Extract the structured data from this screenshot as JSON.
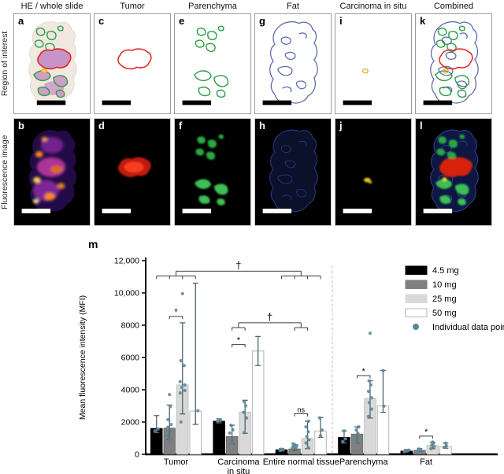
{
  "figure": {
    "row_labels": [
      "Region of interest",
      "Fluorescence image"
    ],
    "column_titles": [
      "HE / whole slide",
      "Tumor",
      "Parenchyma",
      "Fat",
      "Carcinoma in situ",
      "Combined"
    ],
    "letters": {
      "a": "a",
      "b": "b",
      "c": "c",
      "d": "d",
      "e": "e",
      "f": "f",
      "g": "g",
      "h": "h",
      "i": "i",
      "j": "j",
      "k": "k",
      "l": "l"
    }
  },
  "colors": {
    "tumor_outline": "#e02621",
    "parenchyma_outline": "#2e9e46",
    "fat_outline": "#5a67ad",
    "cis_outline": "#f2a93b"
  },
  "chart_data": {
    "type": "bar",
    "panel_label": "m",
    "ylabel": "Mean fluorescence intensity (MFI)",
    "ylim": [
      0,
      12000
    ],
    "yticks": [
      0,
      2000,
      4000,
      6000,
      8000,
      10000,
      12000
    ],
    "ytick_labels": [
      "0",
      "2000",
      "4000",
      "6000",
      "8000",
      "10,000",
      "12,000"
    ],
    "categories": [
      "Tumor",
      "Carcinoma\nin situ",
      "Entire normal tissue",
      "Parenchyma",
      "Fat"
    ],
    "separator_after_category": 2,
    "legend_position": "upper right",
    "point_legend_label": "Individual data point",
    "point_color": "#5b8799",
    "error_color": "#4e656d",
    "series": [
      {
        "name": "4.5 mg",
        "color": "#000000",
        "border": "#000000",
        "values": [
          1600,
          2050,
          280,
          1050,
          200
        ],
        "err_lo": [
          1350,
          1950,
          200,
          700,
          150
        ],
        "err_hi": [
          2400,
          2200,
          350,
          1450,
          300
        ]
      },
      {
        "name": "10 mg",
        "color": "#7f7f7f",
        "border": "#6e6e6e",
        "values": [
          1620,
          1100,
          330,
          1250,
          250
        ],
        "err_lo": [
          900,
          650,
          230,
          700,
          180
        ],
        "err_hi": [
          3050,
          1800,
          500,
          1700,
          350
        ]
      },
      {
        "name": "25 mg",
        "color": "#d9d9d9",
        "border": "#c2c2c2",
        "values": [
          4300,
          2620,
          980,
          3450,
          550
        ],
        "err_lo": [
          2500,
          1300,
          350,
          2250,
          350
        ],
        "err_hi": [
          8150,
          3350,
          2050,
          4550,
          750
        ]
      },
      {
        "name": "50 mg",
        "color": "#ffffff",
        "border": "#b4b4b4",
        "values": [
          2680,
          6400,
          1450,
          3000,
          480
        ],
        "err_lo": [
          1850,
          5500,
          1050,
          2600,
          380
        ],
        "err_hi": [
          10600,
          7300,
          2280,
          5200,
          700
        ]
      }
    ],
    "points": [
      [
        0,
        0,
        1450,
        -2
      ],
      [
        0,
        0,
        1560,
        2
      ],
      [
        0,
        1,
        900,
        1
      ],
      [
        0,
        1,
        1150,
        -3
      ],
      [
        0,
        1,
        1500,
        3
      ],
      [
        0,
        1,
        1680,
        -2
      ],
      [
        0,
        1,
        1850,
        2
      ],
      [
        0,
        1,
        2150,
        -2
      ],
      [
        0,
        1,
        2950,
        1
      ],
      [
        0,
        1,
        3700,
        0
      ],
      [
        0,
        2,
        2000,
        -2
      ],
      [
        0,
        2,
        3800,
        -3
      ],
      [
        0,
        2,
        3950,
        3
      ],
      [
        0,
        2,
        4150,
        -1
      ],
      [
        0,
        2,
        4300,
        3
      ],
      [
        0,
        2,
        4500,
        -3
      ],
      [
        0,
        2,
        5500,
        2
      ],
      [
        0,
        2,
        5800,
        -2
      ],
      [
        0,
        2,
        9950,
        0
      ],
      [
        0,
        3,
        2700,
        3
      ],
      [
        1,
        0,
        2050,
        -2
      ],
      [
        1,
        0,
        2100,
        2
      ],
      [
        1,
        1,
        700,
        -1
      ],
      [
        1,
        1,
        1000,
        2
      ],
      [
        1,
        1,
        1320,
        -3
      ],
      [
        1,
        1,
        1520,
        1
      ],
      [
        1,
        1,
        1800,
        -1
      ],
      [
        1,
        2,
        1350,
        -1
      ],
      [
        1,
        2,
        2250,
        2
      ],
      [
        1,
        2,
        2600,
        -2
      ],
      [
        1,
        2,
        3000,
        1
      ],
      [
        1,
        2,
        3250,
        -1
      ],
      [
        2,
        0,
        240,
        -2
      ],
      [
        2,
        0,
        290,
        2
      ],
      [
        2,
        0,
        320,
        0
      ],
      [
        2,
        1,
        380,
        -3
      ],
      [
        2,
        1,
        430,
        2
      ],
      [
        2,
        1,
        480,
        -1
      ],
      [
        2,
        1,
        540,
        3
      ],
      [
        2,
        1,
        600,
        0
      ],
      [
        2,
        1,
        650,
        -2
      ],
      [
        2,
        2,
        420,
        1
      ],
      [
        2,
        2,
        700,
        -2
      ],
      [
        2,
        2,
        900,
        2
      ],
      [
        2,
        2,
        1100,
        -1
      ],
      [
        2,
        2,
        1400,
        1
      ],
      [
        2,
        2,
        1700,
        -2
      ],
      [
        2,
        2,
        2050,
        1
      ],
      [
        2,
        3,
        1150,
        0
      ],
      [
        2,
        3,
        1500,
        2
      ],
      [
        2,
        3,
        2250,
        -1
      ],
      [
        3,
        0,
        780,
        -2
      ],
      [
        3,
        0,
        960,
        2
      ],
      [
        3,
        0,
        1450,
        0
      ],
      [
        3,
        1,
        720,
        -2
      ],
      [
        3,
        1,
        900,
        2
      ],
      [
        3,
        1,
        1080,
        -3
      ],
      [
        3,
        1,
        1300,
        1
      ],
      [
        3,
        1,
        1500,
        -1
      ],
      [
        3,
        1,
        1700,
        2
      ],
      [
        3,
        2,
        2350,
        -2
      ],
      [
        3,
        2,
        2800,
        2
      ],
      [
        3,
        2,
        3200,
        -1
      ],
      [
        3,
        2,
        3500,
        2
      ],
      [
        3,
        2,
        3900,
        -2
      ],
      [
        3,
        2,
        4300,
        1
      ],
      [
        3,
        2,
        4550,
        -1
      ],
      [
        3,
        2,
        7500,
        0
      ],
      [
        3,
        3,
        2980,
        1
      ],
      [
        3,
        3,
        5180,
        0
      ],
      [
        4,
        0,
        150,
        -3
      ],
      [
        4,
        0,
        200,
        0
      ],
      [
        4,
        0,
        260,
        3
      ],
      [
        4,
        1,
        190,
        -2
      ],
      [
        4,
        1,
        260,
        1
      ],
      [
        4,
        1,
        330,
        -1
      ],
      [
        4,
        2,
        360,
        -2
      ],
      [
        4,
        2,
        480,
        2
      ],
      [
        4,
        2,
        580,
        -1
      ],
      [
        4,
        2,
        680,
        1
      ],
      [
        4,
        2,
        760,
        0
      ],
      [
        4,
        3,
        430,
        -2
      ],
      [
        4,
        3,
        530,
        1
      ],
      [
        4,
        3,
        690,
        0
      ]
    ],
    "pair_brackets": [
      {
        "category": 0,
        "a": 1,
        "b": 2,
        "y": 8550,
        "label": "*"
      },
      {
        "category": 1,
        "a": 1,
        "b": 2,
        "y": 6800,
        "label": "*"
      },
      {
        "category": 2,
        "a": 1,
        "b": 2,
        "y": 2520,
        "label": "ns"
      },
      {
        "category": 3,
        "a": 1,
        "b": 2,
        "y": 4880,
        "label": "*"
      },
      {
        "category": 4,
        "a": 1,
        "b": 2,
        "y": 1130,
        "label": "*"
      }
    ],
    "dagger_brackets": [
      {
        "label": "†",
        "y_main": 11350,
        "y_comb": 11050,
        "combs": [
          {
            "category": 0,
            "series": [
              0,
              1,
              2,
              3
            ]
          },
          {
            "category": 2,
            "series": [
              0,
              1,
              2,
              3
            ]
          }
        ]
      },
      {
        "label": "†",
        "y_main": 8150,
        "y_comb": 7850,
        "combs": [
          {
            "category": 1,
            "series": [
              1,
              2
            ]
          },
          {
            "category": 2,
            "series": [
              1,
              2
            ]
          }
        ]
      }
    ]
  }
}
